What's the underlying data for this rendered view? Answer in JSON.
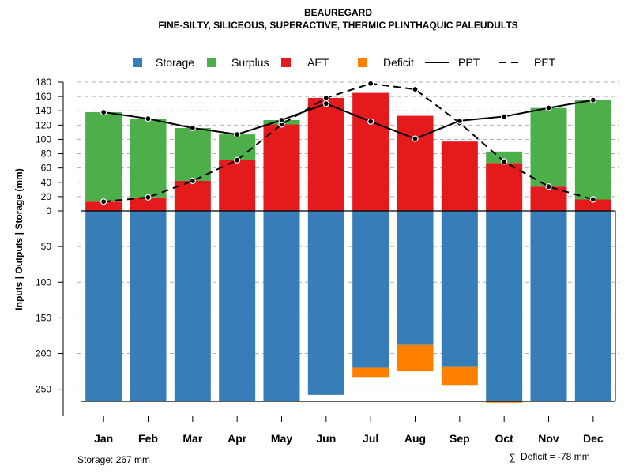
{
  "chart_data": {
    "type": "bar",
    "title": "BEAUREGARD",
    "subtitle": "FINE-SILTY, SILICEOUS, SUPERACTIVE, THERMIC PLINTHAQUIC PALEUDULTS",
    "ylabel": "Inputs | Outputs | Storage    (mm)",
    "categories": [
      "Jan",
      "Feb",
      "Mar",
      "Apr",
      "May",
      "Jun",
      "Jul",
      "Aug",
      "Sep",
      "Oct",
      "Nov",
      "Dec"
    ],
    "upper_ylim": [
      0,
      180
    ],
    "upper_ticks": [
      "0",
      "20",
      "40",
      "60",
      "80",
      "100",
      "120",
      "140",
      "160",
      "180"
    ],
    "lower_ylim": [
      0,
      267
    ],
    "lower_ticks": [
      "50",
      "100",
      "150",
      "200",
      "250"
    ],
    "legend": [
      {
        "name": "Storage",
        "type": "box",
        "color": "#377EB8"
      },
      {
        "name": "Surplus",
        "type": "box",
        "color": "#4DAF4A"
      },
      {
        "name": "AET",
        "type": "box",
        "color": "#E41A1C"
      },
      {
        "name": "Deficit",
        "type": "box",
        "color": "#FF7F00"
      },
      {
        "name": "PPT",
        "type": "line",
        "dash": "solid"
      },
      {
        "name": "PET",
        "type": "line",
        "dash": "dashed"
      }
    ],
    "series": [
      {
        "name": "PPT",
        "values": [
          138,
          129,
          116,
          107,
          127,
          150,
          125,
          101,
          126,
          132,
          144,
          155
        ]
      },
      {
        "name": "PET",
        "values": [
          13,
          19,
          42,
          71,
          121,
          158,
          178,
          170,
          123,
          69,
          34,
          16
        ]
      },
      {
        "name": "AET",
        "values": [
          13,
          19,
          42,
          71,
          121,
          158,
          165,
          133,
          97,
          67,
          34,
          16
        ]
      },
      {
        "name": "Surplus",
        "values": [
          125,
          110,
          74,
          36,
          6,
          0,
          0,
          0,
          0,
          16,
          110,
          139
        ]
      },
      {
        "name": "Storage",
        "values": [
          267,
          267,
          267,
          267,
          267,
          258,
          220,
          188,
          218,
          267,
          267,
          267
        ]
      },
      {
        "name": "Deficit",
        "values": [
          0,
          0,
          0,
          0,
          0,
          0,
          13,
          37,
          26,
          2,
          0,
          0
        ]
      }
    ],
    "storage_capacity": 267,
    "storage_label": "Storage: 267 mm",
    "deficit_symbol": "∑",
    "deficit_label": "Deficit = -78 mm"
  }
}
